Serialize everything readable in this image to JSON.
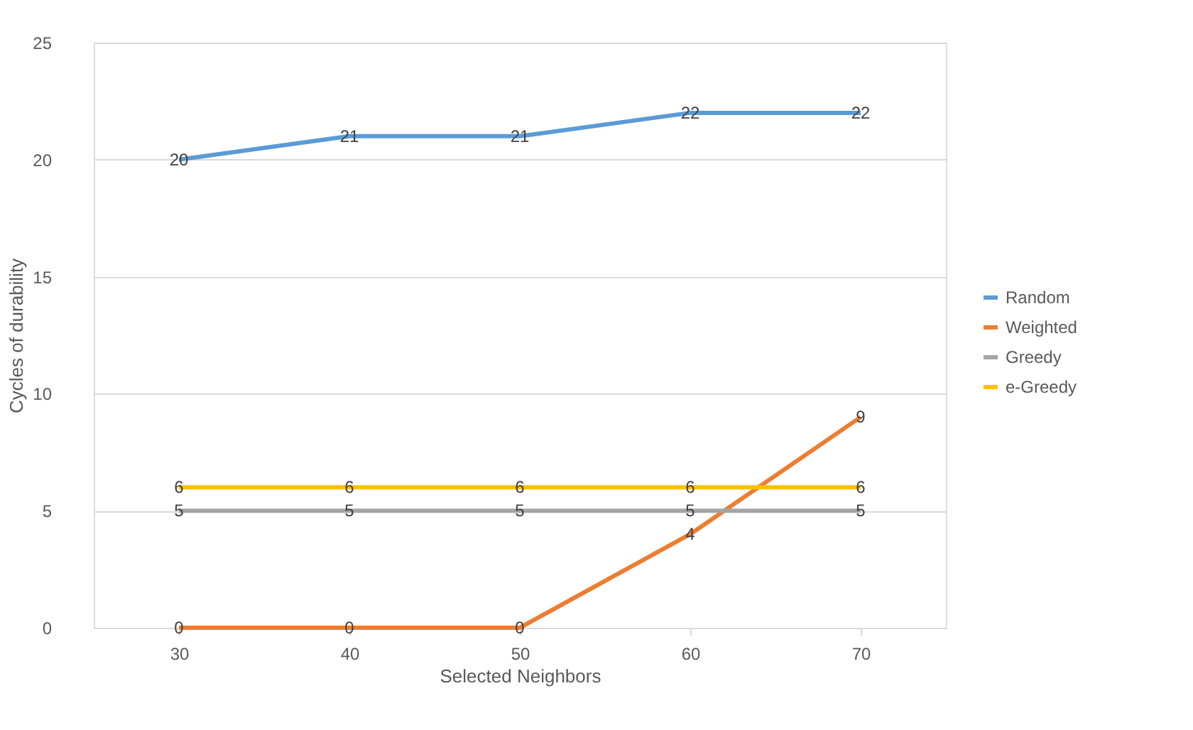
{
  "chart_data": {
    "type": "line",
    "xlabel": "Selected Neighbors",
    "ylabel": "Cycles of durability",
    "categories": [
      "30",
      "40",
      "50",
      "60",
      "70"
    ],
    "series": [
      {
        "name": "Random",
        "color": "#5b9bd5",
        "values": [
          20,
          21,
          21,
          22,
          22
        ]
      },
      {
        "name": "Weighted",
        "color": "#ed7d31",
        "values": [
          0,
          0,
          0,
          4,
          9
        ]
      },
      {
        "name": "Greedy",
        "color": "#a5a5a5",
        "values": [
          5,
          5,
          5,
          5,
          5
        ]
      },
      {
        "name": "e-Greedy",
        "color": "#ffc000",
        "values": [
          6,
          6,
          6,
          6,
          6
        ]
      }
    ],
    "ylim": [
      0,
      25
    ],
    "yticks": [
      0,
      5,
      10,
      15,
      20,
      25
    ],
    "grid": "y",
    "legend": "right",
    "data_labels": true,
    "marker": "none",
    "line_style": "solid"
  }
}
